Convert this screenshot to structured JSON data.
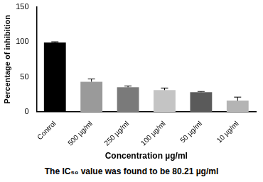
{
  "chart_data": {
    "type": "bar",
    "y_label": "Percentage of inhibition",
    "x_label": "Concentration µg/ml",
    "annotations": [
      "The IC₅₀ value was found to be 80.21 µg/ml"
    ],
    "categories": [
      "Control",
      "500 µg/ml",
      "250 µg/ml",
      "100 µg/ml",
      "50 µg/ml",
      "10 µg/ml"
    ],
    "values": [
      99,
      43,
      35,
      31,
      28,
      16
    ],
    "error": [
      1,
      4,
      2,
      3,
      1,
      5
    ],
    "colors": [
      "#000000",
      "#9a9a9a",
      "#7a7a7a",
      "#c4c4c4",
      "#5a5a5a",
      "#b4b4b4"
    ],
    "ylim": [
      0,
      150
    ],
    "yticks": [
      0,
      50,
      100,
      150
    ],
    "grid": false
  }
}
